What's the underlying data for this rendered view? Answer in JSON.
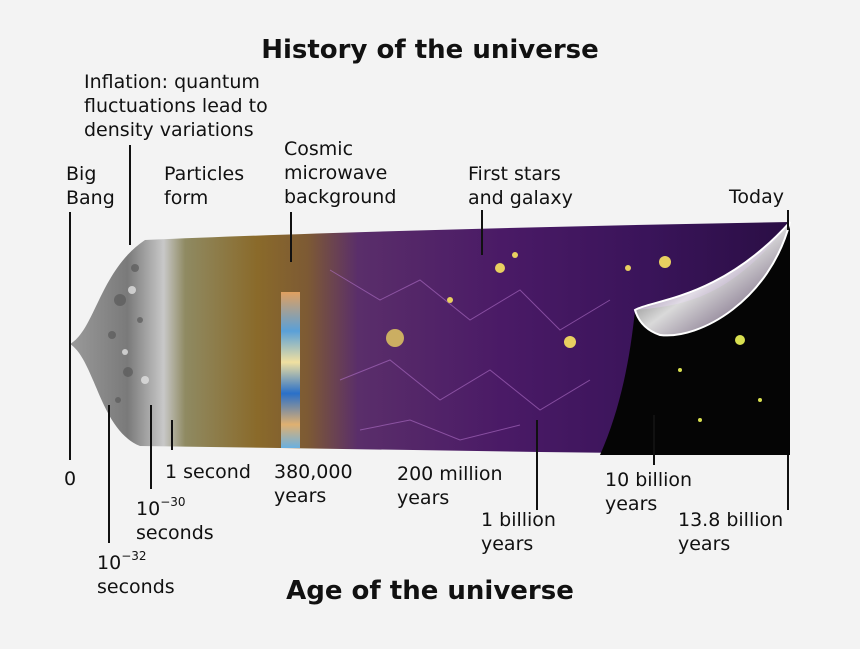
{
  "title": "History of the universe",
  "axis_title": "Age of the universe",
  "event_labels": {
    "inflation": [
      "Inflation: quantum",
      "fluctuations lead to",
      "density variations"
    ],
    "big_bang": [
      "Big",
      "Bang"
    ],
    "particles": [
      "Particles",
      "form"
    ],
    "cmb": [
      "Cosmic",
      "microwave",
      "background"
    ],
    "first_stars": [
      "First stars",
      "and galaxy"
    ],
    "today": "Today"
  },
  "age_labels": {
    "zero": "0",
    "t32": {
      "base": "10",
      "exp": "−32",
      "unit": "seconds"
    },
    "t30": {
      "base": "10",
      "exp": "−30",
      "unit": "seconds"
    },
    "one_second": "1 second",
    "t380k": [
      "380,000",
      "years"
    ],
    "t200m": [
      "200 million",
      "years"
    ],
    "t1b": [
      "1 billion",
      "years"
    ],
    "t10b": [
      "10 billion",
      "years"
    ],
    "t13_8b": [
      "13.8 billion",
      "years"
    ]
  },
  "colors": {
    "background": "#f3f3f3",
    "early_brown": "#8a6a2a",
    "purple_web": "#4a1a66",
    "galaxy_yellow": "#e8d060",
    "dark_era": "#050505"
  }
}
